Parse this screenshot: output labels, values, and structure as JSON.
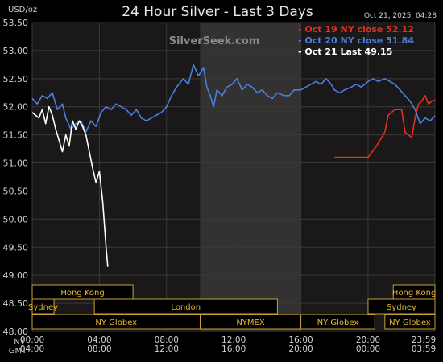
{
  "header": {
    "unit": "USD/oz",
    "title": "24 Hour Silver - Last 3 Days",
    "timestamp": "Oct 21, 2025  04:28",
    "watermark": "SilverSeek.com"
  },
  "legend": [
    {
      "label": "- Oct 19 NY close 52.12",
      "color": "#e03020"
    },
    {
      "label": "- Oct 20 NY close 51.84",
      "color": "#4a7fe0"
    },
    {
      "label": "- Oct 21 Last 49.15",
      "color": "#ffffff"
    }
  ],
  "time_axis": {
    "row_labels": [
      "NY",
      "GMT"
    ],
    "ny_ticks": [
      "00:00",
      "04:00",
      "08:00",
      "12:00",
      "16:00",
      "20:00",
      "23:59"
    ],
    "gmt_ticks": [
      "04:00",
      "08:00",
      "12:00",
      "16:00",
      "20:00",
      "00:00",
      "03:59"
    ]
  },
  "sessions": [
    {
      "label": "Hong Kong",
      "row": 0,
      "start": 0,
      "end": 6.0
    },
    {
      "label": "Hong Kong",
      "row": 0,
      "start": 21.5,
      "end": 23.983
    },
    {
      "label": "Sydney",
      "row": 1,
      "start": 0,
      "end": 1.3
    },
    {
      "label": "London",
      "row": 1,
      "start": 3.7,
      "end": 14.6
    },
    {
      "label": "Sydney",
      "row": 1,
      "start": 20.0,
      "end": 23.983
    },
    {
      "label": "NY Globex",
      "row": 2,
      "start": 0,
      "end": 10.0
    },
    {
      "label": "NYMEX",
      "row": 2,
      "start": 10.0,
      "end": 16.0
    },
    {
      "label": "NY Globex",
      "row": 2,
      "start": 16.0,
      "end": 20.4
    },
    {
      "label": "NY Globex",
      "row": 2,
      "start": 21.0,
      "end": 23.983
    }
  ],
  "chart_data": {
    "type": "line",
    "title": "24 Hour Silver - Last 3 Days",
    "ylabel": "USD/oz",
    "xlabel": "",
    "xlim": [
      0,
      23.983
    ],
    "ylim": [
      48.0,
      53.5
    ],
    "yticks": [
      "48.00",
      "48.50",
      "49.00",
      "49.50",
      "50.00",
      "50.50",
      "51.00",
      "51.50",
      "52.00",
      "52.50",
      "53.00",
      "53.50"
    ],
    "grid": true,
    "highlight_region": [
      10.0,
      16.0
    ],
    "legend_position": "top-right",
    "series": [
      {
        "name": "Oct 19 NY close 52.12",
        "color": "#e03020",
        "points": [
          [
            18.0,
            51.1
          ],
          [
            20.0,
            51.1
          ],
          [
            20.5,
            51.3
          ],
          [
            21.0,
            51.55
          ],
          [
            21.2,
            51.85
          ],
          [
            21.6,
            51.95
          ],
          [
            22.0,
            51.95
          ],
          [
            22.2,
            51.55
          ],
          [
            22.4,
            51.5
          ],
          [
            22.6,
            51.45
          ],
          [
            22.8,
            51.8
          ],
          [
            23.0,
            52.05
          ],
          [
            23.2,
            52.1
          ],
          [
            23.4,
            52.2
          ],
          [
            23.6,
            52.05
          ],
          [
            23.8,
            52.1
          ],
          [
            23.983,
            52.12
          ]
        ]
      },
      {
        "name": "Oct 20 NY close 51.84",
        "color": "#4a7fe0",
        "points": [
          [
            0,
            52.15
          ],
          [
            0.3,
            52.05
          ],
          [
            0.6,
            52.2
          ],
          [
            0.9,
            52.15
          ],
          [
            1.2,
            52.25
          ],
          [
            1.5,
            51.95
          ],
          [
            1.8,
            52.05
          ],
          [
            2.0,
            51.8
          ],
          [
            2.3,
            51.6
          ],
          [
            2.6,
            51.7
          ],
          [
            2.9,
            51.75
          ],
          [
            3.2,
            51.55
          ],
          [
            3.5,
            51.75
          ],
          [
            3.8,
            51.65
          ],
          [
            4.1,
            51.9
          ],
          [
            4.4,
            52.0
          ],
          [
            4.7,
            51.95
          ],
          [
            5.0,
            52.05
          ],
          [
            5.3,
            52.0
          ],
          [
            5.6,
            51.95
          ],
          [
            5.9,
            51.85
          ],
          [
            6.2,
            51.95
          ],
          [
            6.5,
            51.8
          ],
          [
            6.8,
            51.75
          ],
          [
            7.1,
            51.8
          ],
          [
            7.4,
            51.85
          ],
          [
            7.7,
            51.9
          ],
          [
            8.0,
            52.0
          ],
          [
            8.3,
            52.2
          ],
          [
            8.6,
            52.35
          ],
          [
            9.0,
            52.5
          ],
          [
            9.3,
            52.4
          ],
          [
            9.6,
            52.75
          ],
          [
            9.9,
            52.55
          ],
          [
            10.2,
            52.7
          ],
          [
            10.4,
            52.35
          ],
          [
            10.6,
            52.2
          ],
          [
            10.8,
            52.0
          ],
          [
            11.0,
            52.3
          ],
          [
            11.3,
            52.2
          ],
          [
            11.6,
            52.35
          ],
          [
            11.9,
            52.4
          ],
          [
            12.2,
            52.5
          ],
          [
            12.5,
            52.3
          ],
          [
            12.8,
            52.4
          ],
          [
            13.1,
            52.35
          ],
          [
            13.4,
            52.25
          ],
          [
            13.7,
            52.3
          ],
          [
            14.0,
            52.2
          ],
          [
            14.3,
            52.15
          ],
          [
            14.6,
            52.25
          ],
          [
            15.0,
            52.2
          ],
          [
            15.3,
            52.2
          ],
          [
            15.6,
            52.3
          ],
          [
            16.0,
            52.3
          ],
          [
            16.3,
            52.35
          ],
          [
            16.6,
            52.4
          ],
          [
            16.9,
            52.45
          ],
          [
            17.2,
            52.4
          ],
          [
            17.5,
            52.5
          ],
          [
            17.8,
            52.4
          ],
          [
            18.0,
            52.3
          ],
          [
            18.3,
            52.25
          ],
          [
            18.6,
            52.3
          ],
          [
            19.0,
            52.35
          ],
          [
            19.3,
            52.4
          ],
          [
            19.6,
            52.35
          ],
          [
            20.0,
            52.45
          ],
          [
            20.3,
            52.5
          ],
          [
            20.6,
            52.45
          ],
          [
            21.0,
            52.5
          ],
          [
            21.3,
            52.45
          ],
          [
            21.6,
            52.4
          ],
          [
            21.9,
            52.3
          ],
          [
            22.2,
            52.2
          ],
          [
            22.5,
            52.1
          ],
          [
            22.8,
            51.95
          ],
          [
            23.1,
            51.7
          ],
          [
            23.4,
            51.8
          ],
          [
            23.7,
            51.75
          ],
          [
            23.983,
            51.84
          ]
        ]
      },
      {
        "name": "Oct 21 Last 49.15",
        "color": "#ffffff",
        "points": [
          [
            0,
            51.9
          ],
          [
            0.2,
            51.85
          ],
          [
            0.4,
            51.8
          ],
          [
            0.6,
            51.95
          ],
          [
            0.8,
            51.7
          ],
          [
            1.0,
            52.0
          ],
          [
            1.2,
            51.85
          ],
          [
            1.4,
            51.6
          ],
          [
            1.6,
            51.4
          ],
          [
            1.8,
            51.2
          ],
          [
            2.0,
            51.5
          ],
          [
            2.2,
            51.3
          ],
          [
            2.4,
            51.75
          ],
          [
            2.6,
            51.6
          ],
          [
            2.8,
            51.75
          ],
          [
            3.0,
            51.65
          ],
          [
            3.2,
            51.5
          ],
          [
            3.4,
            51.2
          ],
          [
            3.6,
            50.9
          ],
          [
            3.8,
            50.65
          ],
          [
            4.0,
            50.85
          ],
          [
            4.2,
            50.3
          ],
          [
            4.4,
            49.5
          ],
          [
            4.5,
            49.15
          ]
        ]
      }
    ]
  }
}
